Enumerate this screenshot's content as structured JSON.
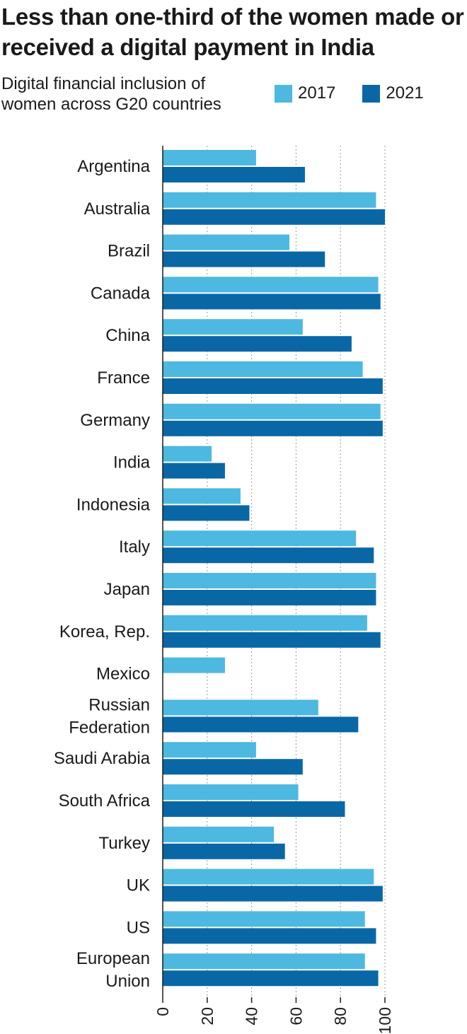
{
  "title": "Less than one-third of the women made or received a digital payment in India",
  "subtitle": "Digital financial inclusion of women across G20 countries",
  "legend": [
    {
      "label": "2017",
      "color": "#4db8e0"
    },
    {
      "label": "2021",
      "color": "#0967a6"
    }
  ],
  "chart_data": {
    "type": "bar",
    "orientation": "horizontal",
    "categories": [
      "Argentina",
      "Australia",
      "Brazil",
      "Canada",
      "China",
      "France",
      "Germany",
      "India",
      "Indonesia",
      "Italy",
      "Japan",
      "Korea, Rep.",
      "Mexico",
      "Russian Federation",
      "Saudi Arabia",
      "South Africa",
      "Turkey",
      "UK",
      "US",
      "European Union"
    ],
    "category_lines": [
      [
        "Argentina"
      ],
      [
        "Australia"
      ],
      [
        "Brazil"
      ],
      [
        "Canada"
      ],
      [
        "China"
      ],
      [
        "France"
      ],
      [
        "Germany"
      ],
      [
        "India"
      ],
      [
        "Indonesia"
      ],
      [
        "Italy"
      ],
      [
        "Japan"
      ],
      [
        "Korea, Rep."
      ],
      [
        "Mexico"
      ],
      [
        "Russian",
        "Federation"
      ],
      [
        "Saudi Arabia"
      ],
      [
        "South Africa"
      ],
      [
        "Turkey"
      ],
      [
        "UK"
      ],
      [
        "US"
      ],
      [
        "European",
        "Union"
      ]
    ],
    "series": [
      {
        "name": "2017",
        "color": "#4db8e0",
        "values": [
          42,
          96,
          57,
          97,
          63,
          90,
          98,
          22,
          35,
          87,
          96,
          92,
          28,
          70,
          42,
          61,
          50,
          95,
          91,
          91
        ]
      },
      {
        "name": "2021",
        "color": "#0967a6",
        "values": [
          64,
          100,
          73,
          98,
          85,
          99,
          99,
          28,
          39,
          95,
          96,
          98,
          null,
          88,
          63,
          82,
          55,
          99,
          96,
          97
        ]
      }
    ],
    "xlim": [
      0,
      100
    ],
    "xticks": [
      0,
      20,
      40,
      60,
      80,
      100
    ],
    "xtick_labels": [
      "0",
      "20",
      "40",
      "60",
      "80",
      "100"
    ],
    "grid": true,
    "legend_position": "top-right"
  }
}
